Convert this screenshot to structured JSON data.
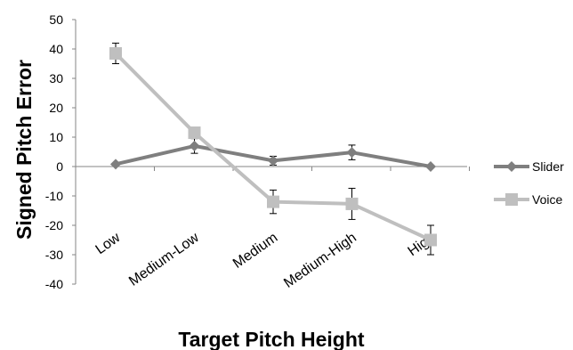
{
  "chart_data": {
    "type": "line",
    "title": "",
    "xlabel": "Target Pitch Height",
    "ylabel": "Signed Pitch Error",
    "categories": [
      "Low",
      "Medium-Low",
      "Medium",
      "Medium-High",
      "High"
    ],
    "ylim": [
      -40,
      50
    ],
    "yticks": [
      -40,
      -30,
      -20,
      -10,
      0,
      10,
      20,
      30,
      40,
      50
    ],
    "grid": false,
    "legend_position": "right",
    "series": [
      {
        "name": "Slider",
        "values": [
          0.8,
          7.0,
          2.0,
          4.8,
          0.0
        ],
        "errors": [
          0,
          2.5,
          1.5,
          2.5,
          0
        ],
        "marker": "diamond",
        "color": "#7f7f7f"
      },
      {
        "name": "Voice",
        "values": [
          38.5,
          11.5,
          -12.0,
          -12.7,
          -25.0
        ],
        "errors": [
          3.5,
          0,
          4.0,
          5.3,
          5.0
        ],
        "marker": "square",
        "color": "#bfbfbf"
      }
    ]
  }
}
